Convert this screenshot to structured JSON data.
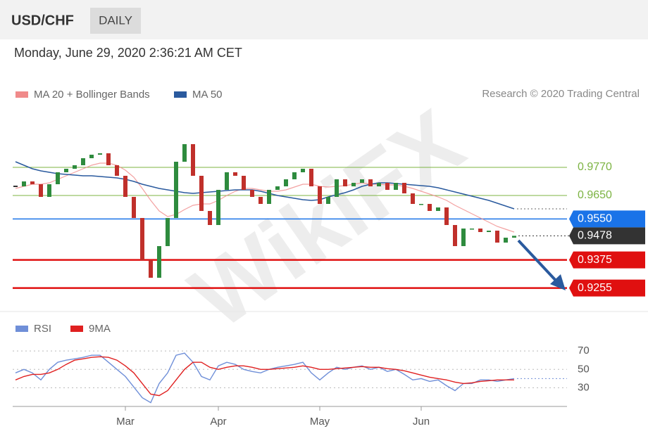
{
  "header": {
    "symbol": "USD/CHF",
    "timeframe": "DAILY"
  },
  "timestamp": "Monday, June 29, 2020 2:36:21 AM CET",
  "copyright": "Research © 2020 Trading Central",
  "watermark": "WikiFX",
  "chart_data": [
    {
      "type": "candlestick",
      "closes": [
        0.9689,
        0.971,
        0.9698,
        0.9644,
        0.9698,
        0.9749,
        0.9764,
        0.9779,
        0.9809,
        0.9824,
        0.983,
        0.9779,
        0.9734,
        0.9644,
        0.9554,
        0.9374,
        0.9299,
        0.9434,
        0.9554,
        0.9794,
        0.9869,
        0.9734,
        0.9584,
        0.9524,
        0.9674,
        0.9749,
        0.9734,
        0.9674,
        0.9644,
        0.9614,
        0.9674,
        0.9689,
        0.9719,
        0.9749,
        0.9764,
        0.9689,
        0.9614,
        0.9644,
        0.9719,
        0.9689,
        0.9704,
        0.9719,
        0.9689,
        0.9704,
        0.9674,
        0.9704,
        0.9659,
        0.9614,
        0.9614,
        0.9584,
        0.9599,
        0.9524,
        0.9434,
        0.9509,
        0.9509,
        0.9494,
        0.95,
        0.9449,
        0.947,
        0.9478
      ],
      "up_color": "#2e8b3e",
      "down_color": "#c0302b",
      "series": [
        {
          "name": "MA 20 + Bollinger Bands",
          "color": "#f08a8a",
          "values": [
            0.968,
            0.9689,
            0.9698,
            0.9698,
            0.9704,
            0.9719,
            0.9734,
            0.9749,
            0.9764,
            0.9779,
            0.9788,
            0.9788,
            0.9779,
            0.9758,
            0.9728,
            0.968,
            0.9629,
            0.9584,
            0.956,
            0.9569,
            0.959,
            0.9608,
            0.9614,
            0.9614,
            0.9629,
            0.965,
            0.9668,
            0.968,
            0.968,
            0.9674,
            0.9668,
            0.9668,
            0.9674,
            0.9686,
            0.9698,
            0.9698,
            0.9689,
            0.9686,
            0.9689,
            0.9692,
            0.9698,
            0.9704,
            0.9698,
            0.9698,
            0.9695,
            0.9695,
            0.9689,
            0.968,
            0.9668,
            0.9656,
            0.9644,
            0.9629,
            0.9608,
            0.959,
            0.9572,
            0.9554,
            0.9536,
            0.9518,
            0.9506,
            0.9494
          ]
        },
        {
          "name": "MA 50",
          "color": "#2a5a9e",
          "values": [
            0.9794,
            0.9779,
            0.9764,
            0.9755,
            0.9749,
            0.9743,
            0.974,
            0.9737,
            0.9734,
            0.9734,
            0.9731,
            0.9728,
            0.9725,
            0.9719,
            0.971,
            0.9698,
            0.9689,
            0.968,
            0.9674,
            0.9668,
            0.9662,
            0.9659,
            0.9662,
            0.9665,
            0.9668,
            0.9671,
            0.9674,
            0.9674,
            0.9674,
            0.9668,
            0.9659,
            0.965,
            0.9644,
            0.9638,
            0.9632,
            0.9629,
            0.9632,
            0.9644,
            0.9653,
            0.9662,
            0.9674,
            0.9689,
            0.9698,
            0.9704,
            0.9704,
            0.9701,
            0.9698,
            0.9695,
            0.9692,
            0.9689,
            0.9683,
            0.9674,
            0.9665,
            0.9656,
            0.9647,
            0.9638,
            0.9629,
            0.9617,
            0.9605,
            0.9593
          ]
        }
      ],
      "ylim": [
        0.9164,
        1.0034
      ],
      "levels": [
        {
          "value": 0.977,
          "label": "0.9770",
          "color": "#7cb342",
          "style": "thin"
        },
        {
          "value": 0.965,
          "label": "0.9650",
          "color": "#7cb342",
          "style": "thin"
        },
        {
          "value": 0.955,
          "label": "0.9550",
          "color": "#1a73e8",
          "style": "box"
        },
        {
          "value": 0.9478,
          "color": "#333333",
          "style": "dotted"
        },
        {
          "value": 0.9375,
          "color": "#e01010",
          "style": "bold"
        },
        {
          "value": 0.9255,
          "color": "#e01010",
          "style": "bold"
        }
      ]
    },
    {
      "type": "line",
      "categories": [
        null,
        null,
        null,
        null,
        null,
        null,
        null,
        null,
        null,
        null,
        null,
        null,
        null,
        "Mar",
        null,
        null,
        null,
        null,
        null,
        null,
        null,
        null,
        null,
        null,
        "Apr",
        null,
        null,
        null,
        null,
        null,
        null,
        null,
        null,
        null,
        null,
        null,
        "May",
        null,
        null,
        null,
        null,
        null,
        null,
        null,
        null,
        null,
        null,
        null,
        "Jun",
        null,
        null,
        null,
        null,
        null,
        null,
        null,
        null,
        null,
        null,
        null
      ],
      "series": [
        {
          "name": "RSI",
          "color": "#6f8fd8",
          "values": [
            46.2,
            50,
            46.2,
            38.5,
            50,
            57.7,
            60,
            61.5,
            63.1,
            65.4,
            65.4,
            57.7,
            50,
            42.3,
            30.8,
            19.2,
            13.8,
            34.6,
            46.2,
            65.4,
            67.7,
            57.7,
            42.3,
            38.5,
            53.8,
            57.7,
            55.4,
            50,
            47.7,
            46.2,
            50,
            52.3,
            53.8,
            55.4,
            57.7,
            46.2,
            38.5,
            46.2,
            52.3,
            50,
            52.3,
            53.8,
            50,
            52.3,
            47.7,
            50,
            44.6,
            38.5,
            40,
            36.9,
            38.5,
            32.3,
            26.9,
            34.6,
            34.6,
            38.5,
            38.5,
            36.9,
            38.5,
            40
          ]
        },
        {
          "name": "9MA",
          "color": "#e02020",
          "values": [
            38.5,
            42.3,
            44.6,
            44.6,
            46.2,
            50,
            55.4,
            60,
            61.5,
            63.1,
            63.8,
            63.1,
            60,
            53.8,
            46.2,
            34.6,
            23.1,
            21.5,
            26.9,
            38.5,
            50,
            57.7,
            57.7,
            52.3,
            50,
            52.3,
            53.8,
            53.8,
            52.3,
            50,
            50,
            50.8,
            51.5,
            52.3,
            53.8,
            52.3,
            50,
            50,
            50.8,
            51.5,
            52.3,
            53.1,
            52.3,
            52.3,
            50.8,
            50,
            48.5,
            46.2,
            43.8,
            41.5,
            40,
            38.5,
            36.2,
            34.6,
            35.4,
            36.9,
            37.7,
            38.5,
            38.5,
            38.5
          ]
        }
      ],
      "ylim": [
        12,
        77
      ],
      "yticks": [
        70,
        50,
        30
      ]
    }
  ]
}
